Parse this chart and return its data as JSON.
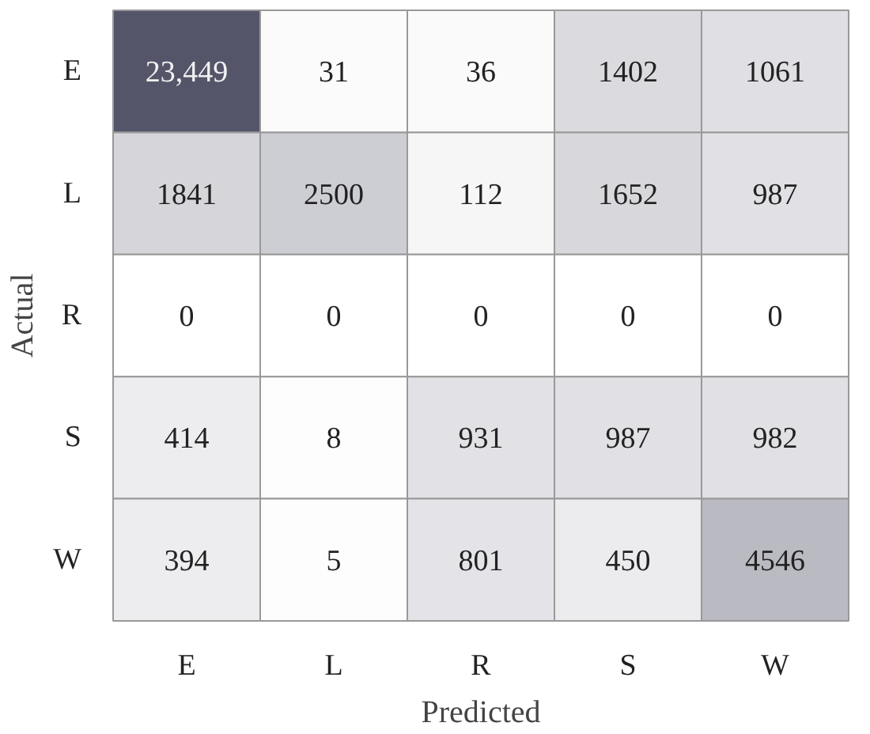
{
  "chart_data": {
    "type": "heatmap",
    "xlabel": "Predicted",
    "ylabel": "Actual",
    "categories": [
      "E",
      "L",
      "R",
      "S",
      "W"
    ],
    "y_categories": [
      "E",
      "L",
      "R",
      "S",
      "W"
    ],
    "cells": [
      [
        23449,
        31,
        36,
        1402,
        1061
      ],
      [
        1841,
        2500,
        112,
        1652,
        987
      ],
      [
        0,
        0,
        0,
        0,
        0
      ],
      [
        414,
        8,
        931,
        987,
        982
      ],
      [
        394,
        5,
        801,
        450,
        4546
      ]
    ],
    "cell_labels": [
      [
        "23,449",
        "31",
        "36",
        "1402",
        "1061"
      ],
      [
        "1841",
        "2500",
        "112",
        "1652",
        "987"
      ],
      [
        "0",
        "0",
        "0",
        "0",
        "0"
      ],
      [
        "414",
        "8",
        "931",
        "987",
        "982"
      ],
      [
        "394",
        "5",
        "801",
        "450",
        "4546"
      ]
    ]
  }
}
